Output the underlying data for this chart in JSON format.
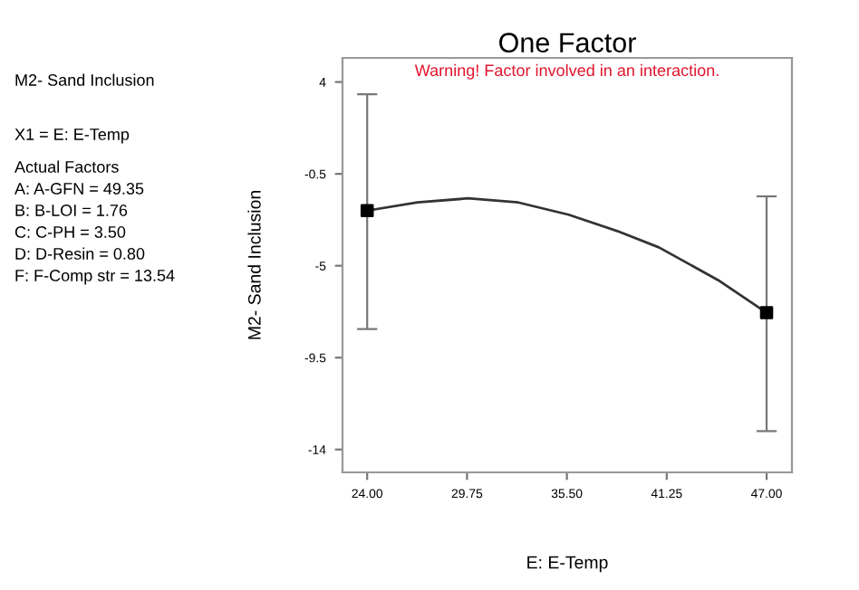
{
  "chart_data": {
    "type": "line",
    "title": "One Factor",
    "xlabel": "E: E-Temp",
    "ylabel": "M2- Sand Inclusion",
    "annotations": [
      "Warning! Factor involved in an interaction.",
      "M2- Sand Inclusion",
      "X1 = E: E-Temp",
      "Actual Factors",
      "A: A-GFN = 49.35",
      "B: B-LOI = 1.76",
      "C: C-PH = 3.50",
      "D: D-Resin = 0.80",
      "F: F-Comp str = 13.54"
    ],
    "series": [
      {
        "color": "#333333",
        "marker": "none",
        "x": [
          24,
          26.9,
          29.8,
          32.7,
          35.6,
          38.4,
          40.8,
          44.2,
          47
        ],
        "values": [
          -2.3,
          -1.9,
          -1.7,
          -1.9,
          -2.5,
          -3.3,
          -4.1,
          -5.7,
          -7.3
        ]
      },
      {
        "type": "scatter",
        "color": "#000000",
        "marker": "square",
        "x": [
          24,
          47
        ],
        "values": [
          -2.3,
          -7.3
        ],
        "errors": [
          [
            -8.1,
            3.4
          ],
          [
            -13.1,
            -1.6
          ]
        ]
      }
    ],
    "xlim": [
      22.58,
      48.46
    ],
    "ylim": [
      -15.12,
      5.18
    ],
    "xticks": [
      {
        "value": 24,
        "label": "24.00"
      },
      {
        "value": 29.75,
        "label": "29.75"
      },
      {
        "value": 35.5,
        "label": "35.50"
      },
      {
        "value": 41.25,
        "label": "41.25"
      },
      {
        "value": 47,
        "label": "47.00"
      }
    ],
    "yticks": [
      4,
      -0.5,
      -5,
      -9.5,
      -14
    ],
    "grid": false,
    "legend": false
  }
}
